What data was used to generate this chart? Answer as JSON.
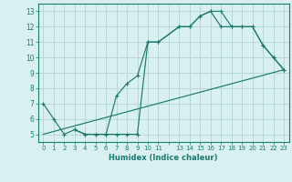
{
  "line1_x": [
    0,
    1,
    2,
    3,
    4,
    5,
    6,
    7,
    8,
    9,
    10,
    11,
    13,
    14,
    15,
    16,
    17,
    18,
    19,
    20,
    21,
    22,
    23
  ],
  "line1_y": [
    7,
    6,
    5,
    5.3,
    5,
    5,
    5,
    5,
    5,
    5,
    11,
    11,
    12,
    12,
    12.7,
    13,
    13,
    12,
    12,
    12,
    10.8,
    10,
    9.2
  ],
  "line2_x": [
    3,
    4,
    5,
    6,
    7,
    8,
    9,
    10,
    11,
    13,
    14,
    15,
    16,
    17,
    18,
    19,
    20,
    21,
    22,
    23
  ],
  "line2_y": [
    5.3,
    5,
    5,
    5,
    7.5,
    8.3,
    8.8,
    11,
    11,
    12,
    12,
    12.7,
    13,
    12,
    12,
    12,
    12,
    10.8,
    10,
    9.2
  ],
  "line3_x": [
    0,
    23
  ],
  "line3_y": [
    5,
    9.2
  ],
  "line_color": "#1a7a6e",
  "bg_color": "#d8f0f0",
  "grid_color": "#b8d8d8",
  "xlabel": "Humidex (Indice chaleur)",
  "yticks": [
    5,
    6,
    7,
    8,
    9,
    10,
    11,
    12,
    13
  ],
  "xlim": [
    -0.5,
    23.5
  ],
  "ylim": [
    4.5,
    13.5
  ]
}
